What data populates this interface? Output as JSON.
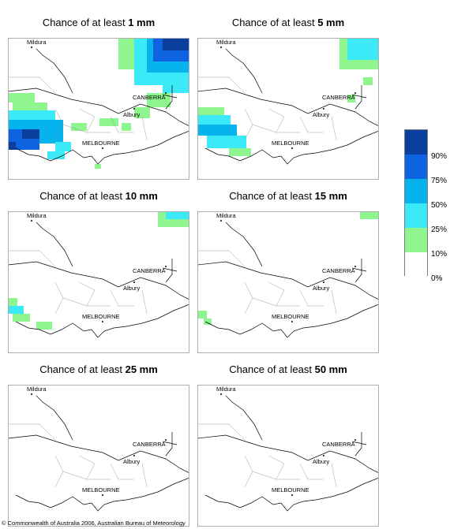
{
  "panels": [
    {
      "title_prefix": "Chance of at least ",
      "amount": "1 mm"
    },
    {
      "title_prefix": "Chance of at least ",
      "amount": "5 mm"
    },
    {
      "title_prefix": "Chance of at least ",
      "amount": "10 mm"
    },
    {
      "title_prefix": "Chance of at least ",
      "amount": "15 mm"
    },
    {
      "title_prefix": "Chance of at least ",
      "amount": "25 mm"
    },
    {
      "title_prefix": "Chance of at least ",
      "amount": "50 mm"
    }
  ],
  "places": {
    "mildura": "Mildura",
    "canberra": "CANBERRA",
    "albury": "Albury",
    "melbourne": "MELBOURNE"
  },
  "legend": {
    "labels": [
      "90%",
      "75%",
      "50%",
      "25%",
      "10%",
      "0%"
    ],
    "colors": [
      "#0a3f9e",
      "#0e63e0",
      "#06b3ec",
      "#3ceaf7",
      "#8ef58f",
      "#ffffff"
    ]
  },
  "copyright": "© Commonwealth of Australia 2006, Australian Bureau of Meteorology"
}
